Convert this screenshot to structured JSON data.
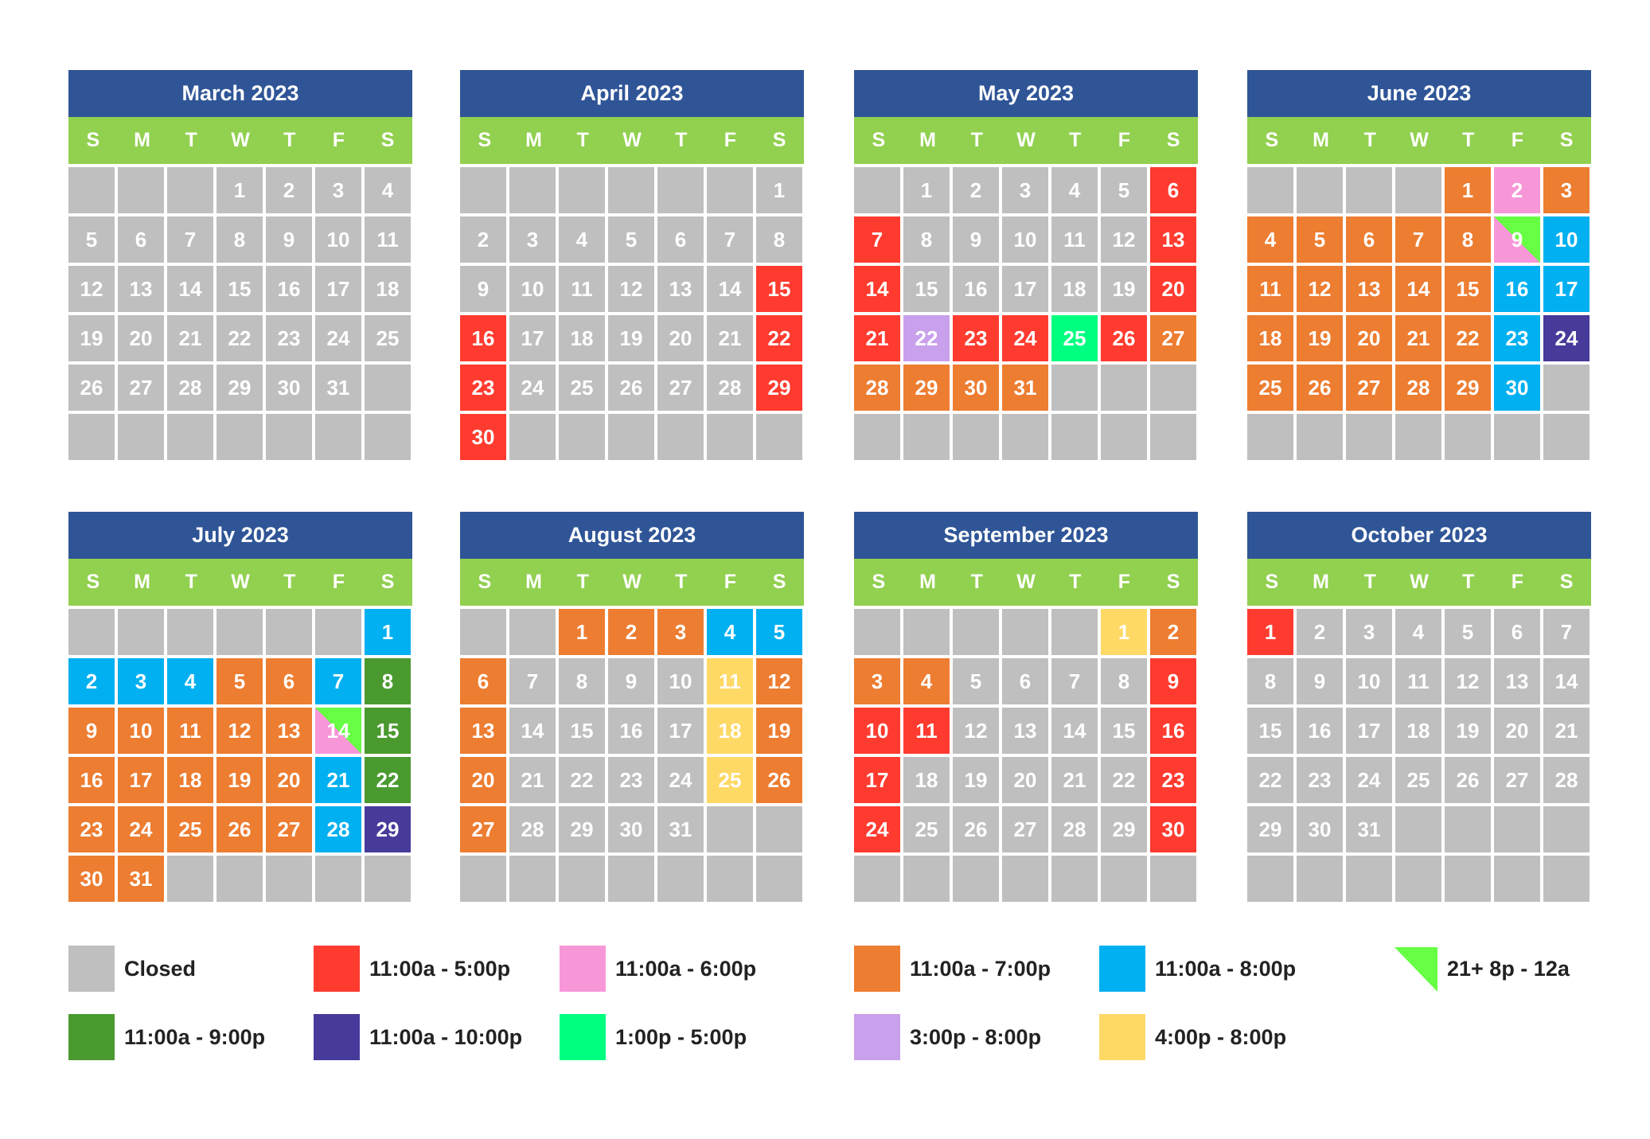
{
  "colors": {
    "closed": "#bfbfbf",
    "c5": "#ff3b2f",
    "c6": "#f797d8",
    "c7": "#ed7d31",
    "c8": "#00b0f0",
    "c9": "#4a9a2f",
    "c10": "#463a9a",
    "c15": "#00ff80",
    "c38": "#c9a0ec",
    "c48": "#ffd966",
    "c21": "#66ff44",
    "header": "#2f5597",
    "dow": "#92d050"
  },
  "dow": [
    "S",
    "M",
    "T",
    "W",
    "T",
    "F",
    "S"
  ],
  "legend": [
    {
      "key": "closed",
      "label": "Closed"
    },
    {
      "key": "c5",
      "label": "11:00a - 5:00p"
    },
    {
      "key": "c6",
      "label": "11:00a - 6:00p"
    },
    {
      "key": "c7",
      "label": "11:00a - 7:00p"
    },
    {
      "key": "c8",
      "label": "11:00a - 8:00p"
    },
    {
      "key": "c21",
      "label": "21+ 8p - 12a",
      "triangle": true
    },
    {
      "key": "c9",
      "label": "11:00a - 9:00p"
    },
    {
      "key": "c10",
      "label": "11:00a - 10:00p"
    },
    {
      "key": "c15",
      "label": "1:00p - 5:00p"
    },
    {
      "key": "c38",
      "label": "3:00p - 8:00p"
    },
    {
      "key": "c48",
      "label": "4:00p - 8:00p"
    }
  ],
  "months": [
    {
      "title": "March 2023",
      "start": 3,
      "days": 31,
      "colors": {}
    },
    {
      "title": "April 2023",
      "start": 6,
      "days": 30,
      "colors": {
        "15": "c5",
        "16": "c5",
        "22": "c5",
        "23": "c5",
        "29": "c5",
        "30": "c5"
      }
    },
    {
      "title": "May 2023",
      "start": 1,
      "days": 31,
      "colors": {
        "6": "c5",
        "7": "c5",
        "13": "c5",
        "14": "c5",
        "20": "c5",
        "21": "c5",
        "22": "c38",
        "23": "c5",
        "24": "c5",
        "25": "c15",
        "26": "c5",
        "27": "c7",
        "28": "c7",
        "29": "c7",
        "30": "c7",
        "31": "c7"
      }
    },
    {
      "title": "June 2023",
      "start": 4,
      "days": 30,
      "colors": {
        "1": "c7",
        "2": "c6",
        "3": "c7",
        "4": "c7",
        "5": "c7",
        "6": "c7",
        "7": "c7",
        "8": "c7",
        "9": "c6",
        "10": "c8",
        "11": "c7",
        "12": "c7",
        "13": "c7",
        "14": "c7",
        "15": "c7",
        "16": "c8",
        "17": "c8",
        "18": "c7",
        "19": "c7",
        "20": "c7",
        "21": "c7",
        "22": "c7",
        "23": "c8",
        "24": "c10",
        "25": "c7",
        "26": "c7",
        "27": "c7",
        "28": "c7",
        "29": "c7",
        "30": "c8"
      },
      "triangles": [
        "9"
      ]
    },
    {
      "title": "July 2023",
      "start": 6,
      "days": 31,
      "colors": {
        "1": "c8",
        "2": "c8",
        "3": "c8",
        "4": "c8",
        "5": "c7",
        "6": "c7",
        "7": "c8",
        "8": "c9",
        "9": "c7",
        "10": "c7",
        "11": "c7",
        "12": "c7",
        "13": "c7",
        "14": "c6",
        "15": "c9",
        "16": "c7",
        "17": "c7",
        "18": "c7",
        "19": "c7",
        "20": "c7",
        "21": "c8",
        "22": "c9",
        "23": "c7",
        "24": "c7",
        "25": "c7",
        "26": "c7",
        "27": "c7",
        "28": "c8",
        "29": "c10",
        "30": "c7",
        "31": "c7"
      },
      "triangles": [
        "14"
      ]
    },
    {
      "title": "August 2023",
      "start": 2,
      "days": 31,
      "colors": {
        "1": "c7",
        "2": "c7",
        "3": "c7",
        "4": "c8",
        "5": "c8",
        "6": "c7",
        "11": "c48",
        "12": "c7",
        "13": "c7",
        "18": "c48",
        "19": "c7",
        "20": "c7",
        "25": "c48",
        "26": "c7",
        "27": "c7"
      }
    },
    {
      "title": "September 2023",
      "start": 5,
      "days": 30,
      "colors": {
        "1": "c48",
        "2": "c7",
        "3": "c7",
        "4": "c7",
        "9": "c5",
        "10": "c5",
        "11": "c5",
        "16": "c5",
        "17": "c5",
        "23": "c5",
        "24": "c5",
        "30": "c5"
      }
    },
    {
      "title": "October 2023",
      "start": 0,
      "days": 31,
      "colors": {
        "1": "c5"
      }
    }
  ]
}
